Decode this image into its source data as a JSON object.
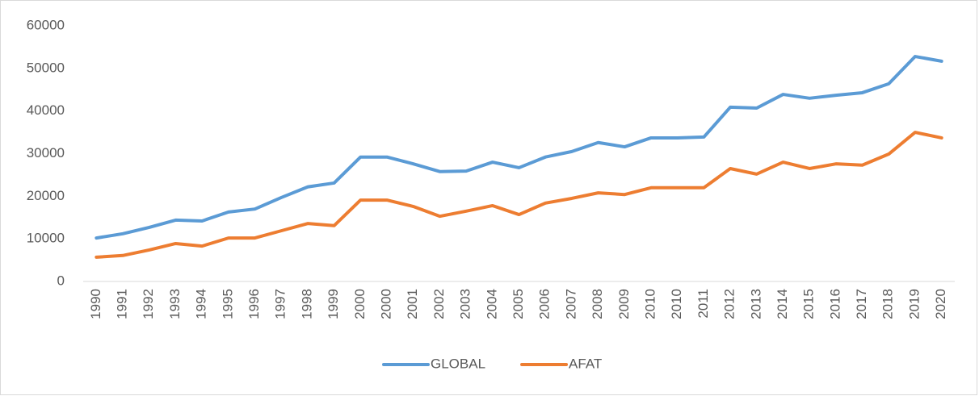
{
  "chart_data": {
    "type": "line",
    "categories": [
      "1990",
      "1991",
      "1992",
      "1993",
      "1994",
      "1995",
      "1996",
      "1997",
      "1998",
      "1999",
      "2000",
      "2000",
      "2001",
      "2002",
      "2003",
      "2004",
      "2005",
      "2006",
      "2007",
      "2008",
      "2009",
      "2010",
      "2010",
      "2011",
      "2012",
      "2013",
      "2014",
      "2015",
      "2016",
      "2017",
      "2018",
      "2019",
      "2020"
    ],
    "series": [
      {
        "name": "GLOBAL",
        "color": "#5b9bd5",
        "values": [
          10200,
          11200,
          12700,
          14400,
          14200,
          16300,
          17000,
          19700,
          22200,
          23100,
          29200,
          29200,
          27600,
          25800,
          25900,
          28000,
          26700,
          29200,
          30500,
          32600,
          31600,
          33700,
          33700,
          33900,
          40900,
          40700,
          43900,
          43000,
          43700,
          44300,
          46400,
          52800,
          51700
        ]
      },
      {
        "name": "AFAT",
        "color": "#ed7d31",
        "values": [
          5700,
          6100,
          7400,
          8900,
          8300,
          10200,
          10200,
          11900,
          13600,
          13100,
          19100,
          19100,
          17600,
          15300,
          16500,
          17800,
          15700,
          18400,
          19500,
          20800,
          20400,
          22000,
          22000,
          22000,
          26500,
          25200,
          28000,
          26500,
          27600,
          27300,
          29900,
          35000,
          33700
        ]
      }
    ],
    "ylim": [
      0,
      60000
    ],
    "yticks": [
      0,
      10000,
      20000,
      30000,
      40000,
      50000,
      60000
    ],
    "grid": false,
    "legend": "bottom"
  }
}
